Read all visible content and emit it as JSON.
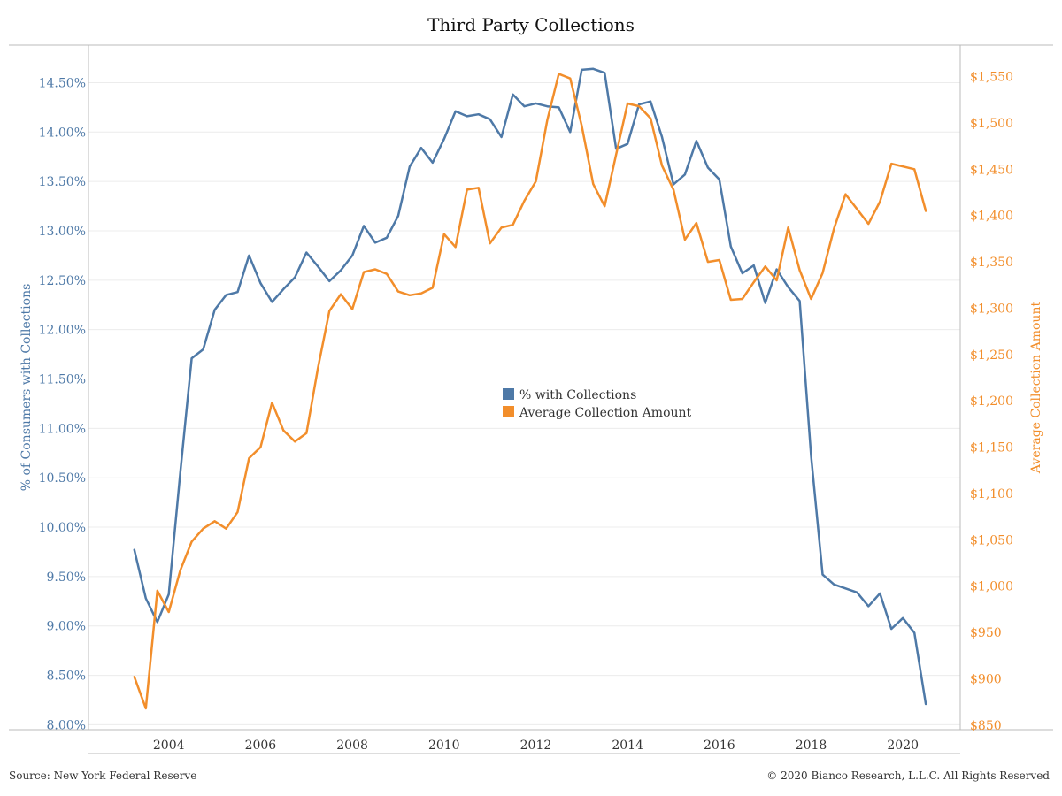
{
  "header": {
    "title": "Third Party Collections"
  },
  "footer": {
    "source": "Source: New York Federal Reserve",
    "copyright": "© 2020 Bianco Research, L.L.C. All Rights Reserved"
  },
  "colors": {
    "pct_series": "#4e79a7",
    "amount_series": "#f28e2b",
    "grid": "#ececec",
    "axis": "#bbbbbb"
  },
  "chart_data": {
    "type": "line",
    "title": "Third Party Collections",
    "grid": true,
    "legend_position": "center",
    "x_axis": {
      "ticks": [
        "2004",
        "2006",
        "2008",
        "2010",
        "2012",
        "2014",
        "2016",
        "2018",
        "2020"
      ],
      "xlim": [
        2002.25,
        2021.25
      ]
    },
    "y_left": {
      "label": "% of Consumers with Collections",
      "ylim": [
        7.95,
        14.88
      ],
      "ticks": [
        8.0,
        8.5,
        9.0,
        9.5,
        10.0,
        10.5,
        11.0,
        11.5,
        12.0,
        12.5,
        13.0,
        13.5,
        14.0,
        14.5
      ],
      "tick_labels": [
        "8.00%",
        "8.50%",
        "9.00%",
        "9.50%",
        "10.00%",
        "10.50%",
        "11.00%",
        "11.50%",
        "12.00%",
        "12.50%",
        "13.00%",
        "13.50%",
        "14.00%",
        "14.50%"
      ]
    },
    "y_right": {
      "label": "Average Collection Amount",
      "ylim": [
        845,
        1584
      ],
      "ticks": [
        850,
        900,
        950,
        1000,
        1050,
        1100,
        1150,
        1200,
        1250,
        1300,
        1350,
        1400,
        1450,
        1500,
        1550
      ],
      "tick_labels": [
        "$850",
        "$900",
        "$950",
        "$1,000",
        "$1,050",
        "$1,100",
        "$1,150",
        "$1,200",
        "$1,250",
        "$1,300",
        "$1,350",
        "$1,400",
        "$1,450",
        "$1,500",
        "$1,550"
      ]
    },
    "series": [
      {
        "name": "% with Collections",
        "axis": "left",
        "color": "#4e79a7",
        "x": [
          2003.25,
          2003.5,
          2003.75,
          2004.0,
          2004.25,
          2004.5,
          2004.75,
          2005.0,
          2005.25,
          2005.5,
          2005.75,
          2006.0,
          2006.25,
          2006.5,
          2006.75,
          2007.0,
          2007.25,
          2007.5,
          2007.75,
          2008.0,
          2008.25,
          2008.5,
          2008.75,
          2009.0,
          2009.25,
          2009.5,
          2009.75,
          2010.0,
          2010.25,
          2010.5,
          2010.75,
          2011.0,
          2011.25,
          2011.5,
          2011.75,
          2012.0,
          2012.25,
          2012.5,
          2012.75,
          2013.0,
          2013.25,
          2013.5,
          2013.75,
          2014.0,
          2014.25,
          2014.5,
          2014.75,
          2015.0,
          2015.25,
          2015.5,
          2015.75,
          2016.0,
          2016.25,
          2016.5,
          2016.75,
          2017.0,
          2017.25,
          2017.5,
          2017.75,
          2018.0,
          2018.25,
          2018.5,
          2018.75,
          2019.0,
          2019.25,
          2019.5,
          2019.75,
          2020.0,
          2020.25,
          2020.5
        ],
        "values": [
          9.77,
          9.28,
          9.04,
          9.32,
          10.55,
          11.71,
          11.8,
          12.2,
          12.35,
          12.38,
          12.75,
          12.47,
          12.28,
          12.41,
          12.53,
          12.78,
          12.64,
          12.49,
          12.6,
          12.75,
          13.05,
          12.88,
          12.93,
          13.15,
          13.65,
          13.84,
          13.69,
          13.93,
          14.21,
          14.16,
          14.18,
          14.13,
          13.95,
          14.38,
          14.26,
          14.29,
          14.26,
          14.25,
          14.0,
          14.63,
          14.64,
          14.6,
          13.83,
          13.88,
          14.28,
          14.31,
          13.95,
          13.47,
          13.57,
          13.91,
          13.64,
          13.52,
          12.84,
          12.57,
          12.65,
          12.27,
          12.61,
          12.43,
          12.29,
          10.72,
          9.52,
          9.42,
          9.38,
          9.34,
          9.2,
          9.33,
          8.97,
          9.08,
          8.93,
          8.21
        ]
      },
      {
        "name": "Average Collection Amount",
        "axis": "right",
        "color": "#f28e2b",
        "x": [
          2003.25,
          2003.5,
          2003.75,
          2004.0,
          2004.25,
          2004.5,
          2004.75,
          2005.0,
          2005.25,
          2005.5,
          2005.75,
          2006.0,
          2006.25,
          2006.5,
          2006.75,
          2007.0,
          2007.25,
          2007.5,
          2007.75,
          2008.0,
          2008.25,
          2008.5,
          2008.75,
          2009.0,
          2009.25,
          2009.5,
          2009.75,
          2010.0,
          2010.25,
          2010.5,
          2010.75,
          2011.0,
          2011.25,
          2011.5,
          2011.75,
          2012.0,
          2012.25,
          2012.5,
          2012.75,
          2013.0,
          2013.25,
          2013.5,
          2013.75,
          2014.0,
          2014.25,
          2014.5,
          2014.75,
          2015.0,
          2015.25,
          2015.5,
          2015.75,
          2016.0,
          2016.25,
          2016.5,
          2016.75,
          2017.0,
          2017.25,
          2017.5,
          2017.75,
          2018.0,
          2018.25,
          2018.5,
          2018.75,
          2019.0,
          2019.25,
          2019.5,
          2019.75,
          2020.0,
          2020.25,
          2020.5
        ],
        "values": [
          902,
          868,
          995,
          972,
          1017,
          1048,
          1062,
          1070,
          1062,
          1080,
          1138,
          1150,
          1198,
          1168,
          1156,
          1165,
          1235,
          1297,
          1315,
          1299,
          1339,
          1342,
          1337,
          1318,
          1314,
          1316,
          1322,
          1380,
          1366,
          1428,
          1430,
          1370,
          1387,
          1390,
          1416,
          1437,
          1503,
          1553,
          1548,
          1497,
          1434,
          1410,
          1466,
          1521,
          1518,
          1505,
          1454,
          1428,
          1374,
          1392,
          1350,
          1352,
          1309,
          1310,
          1328,
          1345,
          1330,
          1387,
          1341,
          1310,
          1338,
          1386,
          1423,
          1407,
          1391,
          1415,
          1456,
          1453,
          1450,
          1405
        ]
      }
    ]
  }
}
